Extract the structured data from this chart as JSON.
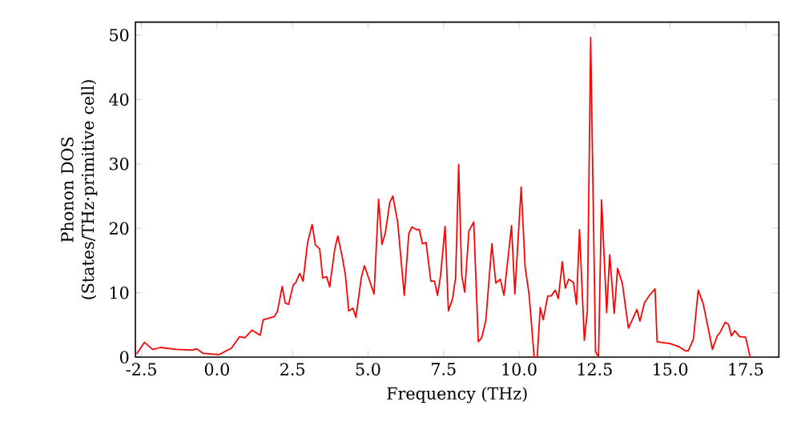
{
  "chart_data": {
    "type": "line",
    "xlabel": "Frequency (THz)",
    "ylabel": "Phonon DOS (States/THz·primitive cell)",
    "x": [
      -2.66,
      -2.4,
      -2.13,
      -1.87,
      -1.35,
      -0.82,
      -0.67,
      -0.46,
      0.07,
      0.48,
      0.75,
      0.92,
      1.16,
      1.43,
      1.53,
      1.9,
      2.0,
      2.16,
      2.26,
      2.37,
      2.53,
      2.6,
      2.74,
      2.85,
      3.0,
      3.15,
      3.26,
      3.4,
      3.5,
      3.63,
      3.73,
      3.9,
      4.0,
      4.15,
      4.25,
      4.36,
      4.5,
      4.6,
      4.78,
      4.88,
      5.2,
      5.35,
      5.46,
      5.57,
      5.72,
      5.82,
      5.98,
      6.2,
      6.35,
      6.45,
      6.6,
      6.7,
      6.8,
      6.92,
      7.08,
      7.2,
      7.3,
      7.4,
      7.55,
      7.66,
      7.8,
      7.9,
      8.0,
      8.1,
      8.2,
      8.34,
      8.5,
      8.65,
      8.76,
      8.9,
      9.1,
      9.23,
      9.38,
      9.5,
      9.75,
      9.86,
      10.07,
      10.2,
      10.33,
      10.5,
      10.6,
      10.7,
      10.8,
      10.95,
      11.06,
      11.2,
      11.3,
      11.43,
      11.53,
      11.64,
      11.8,
      11.9,
      12.0,
      12.16,
      12.26,
      12.37,
      12.53,
      12.63,
      12.73,
      12.9,
      13.0,
      13.15,
      13.26,
      13.42,
      13.62,
      13.9,
      14.0,
      14.15,
      14.3,
      14.5,
      14.57,
      15.0,
      15.3,
      15.5,
      15.6,
      15.77,
      15.93,
      16.1,
      16.4,
      16.56,
      16.66,
      16.82,
      16.93,
      17.03,
      17.14,
      17.3,
      17.5,
      17.65
    ],
    "series": [
      {
        "color": "#ff0000",
        "values": [
          0.5,
          2.3,
          1.2,
          1.5,
          1.2,
          1.1,
          1.3,
          0.6,
          0.4,
          1.4,
          3.2,
          3.0,
          4.2,
          3.4,
          5.8,
          6.3,
          7.1,
          11,
          8.4,
          8.2,
          11.3,
          11.5,
          13,
          11.8,
          17.8,
          20.6,
          17.4,
          16.8,
          12.3,
          12.5,
          10.9,
          16.8,
          18.8,
          15.5,
          12.8,
          7.2,
          7.6,
          6.2,
          12.4,
          14.2,
          9.8,
          24.5,
          17.5,
          19.2,
          24,
          25,
          21,
          9.6,
          19.2,
          20.2,
          19.8,
          19.8,
          17.6,
          17.8,
          11.8,
          11.8,
          9.6,
          12.6,
          20.3,
          7.2,
          9.1,
          12.4,
          29.9,
          12.8,
          10.1,
          19.6,
          21,
          2.4,
          3.0,
          5.7,
          17.6,
          11.5,
          12.1,
          9.6,
          20.4,
          9.8,
          26.4,
          14,
          9.8,
          0,
          0,
          7.7,
          5.8,
          9.5,
          9.5,
          10.4,
          9.1,
          14.8,
          10.7,
          12.1,
          11.6,
          8.2,
          19.8,
          2.6,
          7.2,
          49.6,
          0.9,
          0,
          24.4,
          6.9,
          15.9,
          6.8,
          13.8,
          11.4,
          4.5,
          7.4,
          5.6,
          8.4,
          9.5,
          10.6,
          2.4,
          2.1,
          1.6,
          1.0,
          1.0,
          2.8,
          10.4,
          8.2,
          1.2,
          3.3,
          3.9,
          5.4,
          5.1,
          3.3,
          4.1,
          3.2,
          3.1,
          0
        ]
      }
    ],
    "xlim": [
      -2.7,
      18.6
    ],
    "ylim": [
      0,
      52
    ],
    "xticks": [
      {
        "value": -2.5,
        "label": "-2.5"
      },
      {
        "value": 0,
        "label": "0.0"
      },
      {
        "value": 2.5,
        "label": "2.5"
      },
      {
        "value": 5,
        "label": "5.0"
      },
      {
        "value": 7.5,
        "label": "7.5"
      },
      {
        "value": 10,
        "label": "10.0"
      },
      {
        "value": 12.5,
        "label": "12.5"
      },
      {
        "value": 15,
        "label": "15.0"
      },
      {
        "value": 17.5,
        "label": "17.5"
      }
    ],
    "yticks": [
      0,
      10,
      20,
      30,
      40,
      50
    ]
  }
}
